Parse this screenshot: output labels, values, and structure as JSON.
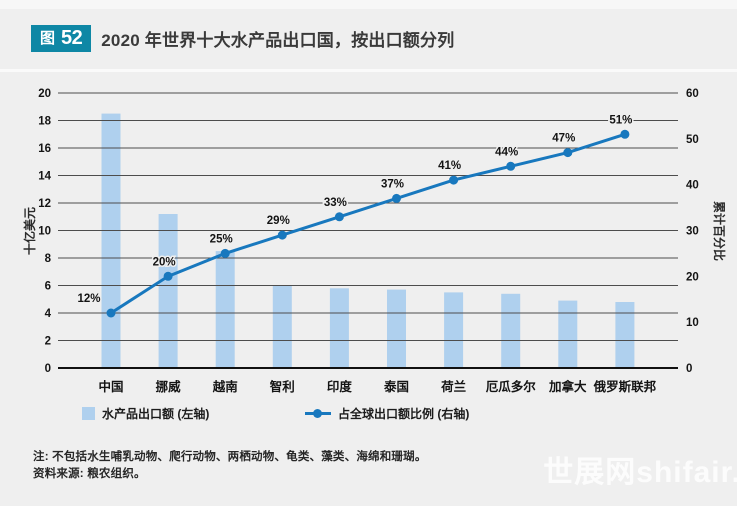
{
  "header": {
    "badge_prefix": "图",
    "badge_number": "52",
    "title": "2020 年世界十大水产品出口国，按出口额分列"
  },
  "colors": {
    "accent_teal": "#0e87a5",
    "bar_fill": "#afd0ee",
    "line_blue": "#1878be",
    "background": "#efefef",
    "gridline": "#4d4d4d"
  },
  "chart_data": {
    "type": "bar",
    "subtype": "pareto-combo-bar-line",
    "title": "2020 年世界十大水产品出口国，按出口额分列",
    "categories": [
      "中国",
      "挪威",
      "越南",
      "智利",
      "印度",
      "泰国",
      "荷兰",
      "厄瓜多尔",
      "加拿大",
      "俄罗斯联邦"
    ],
    "series": [
      {
        "name": "水产品出口额 (左轴)",
        "type": "bar",
        "axis": "left",
        "values": [
          18.5,
          11.2,
          8.5,
          6.0,
          5.8,
          5.7,
          5.5,
          5.4,
          4.9,
          4.8
        ]
      },
      {
        "name": "占全球出口额比例 (右轴)",
        "type": "line",
        "axis": "right",
        "values": [
          12,
          20,
          25,
          29,
          33,
          37,
          41,
          44,
          47,
          51
        ],
        "point_labels": [
          "12%",
          "20%",
          "25%",
          "29%",
          "33%",
          "37%",
          "41%",
          "44%",
          "47%",
          "51%"
        ]
      }
    ],
    "left_axis": {
      "label": "十亿美元",
      "min": 0,
      "max": 20,
      "step": 2
    },
    "right_axis": {
      "label": "累计百分比",
      "min": 0,
      "max": 60,
      "step": 10
    },
    "grid": true,
    "legend_position": "bottom"
  },
  "legend": {
    "items": [
      {
        "label": "水产品出口额 (左轴)",
        "swatch": "bar-square"
      },
      {
        "label": "占全球出口额比例 (右轴)",
        "swatch": "line-dot"
      }
    ]
  },
  "notes": {
    "line1": "注: 不包括水生哺乳动物、爬行动物、两栖动物、龟类、藻类、海绵和珊瑚。",
    "line2": "资料来源: 粮农组织。"
  },
  "watermark": {
    "text": "世展网shifair."
  }
}
